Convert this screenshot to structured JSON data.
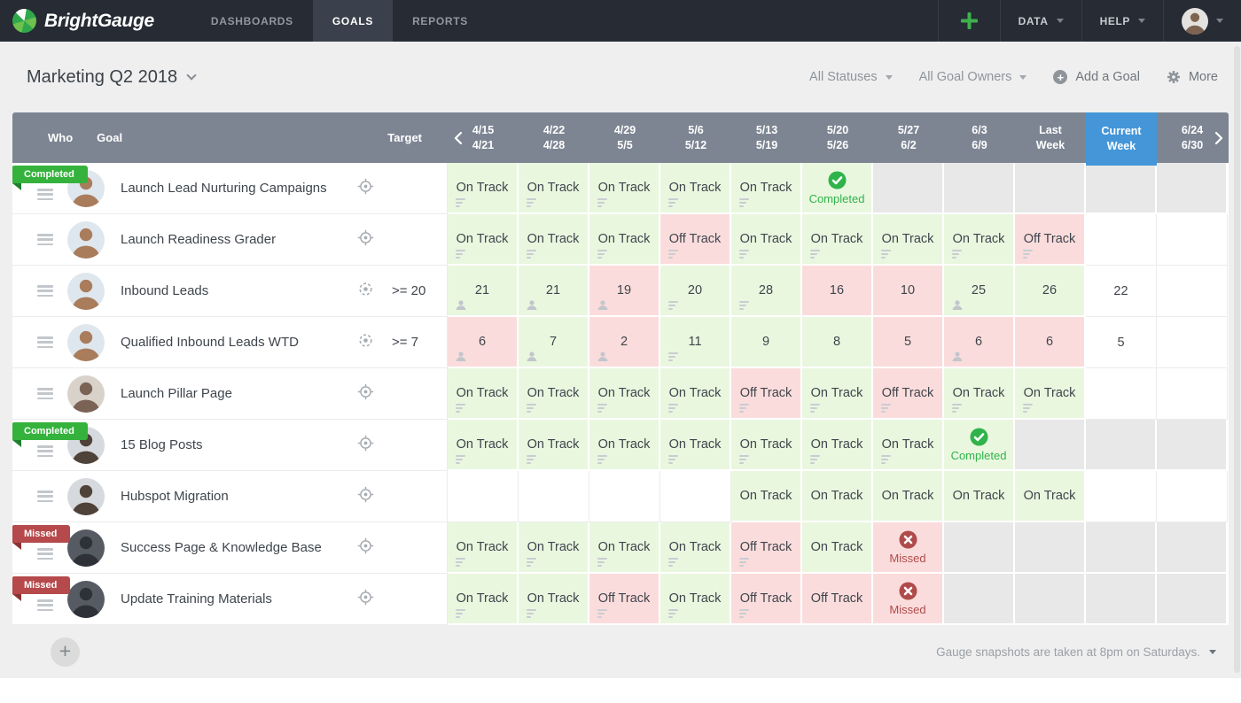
{
  "nav": {
    "brand": "BrightGauge",
    "tabs": [
      {
        "label": "DASHBOARDS",
        "active": false
      },
      {
        "label": "GOALS",
        "active": true
      },
      {
        "label": "REPORTS",
        "active": false
      }
    ],
    "menus": [
      {
        "label": "DATA"
      },
      {
        "label": "HELP"
      }
    ]
  },
  "toolbar": {
    "title": "Marketing Q2 2018",
    "status_filter": "All Statuses",
    "owner_filter": "All Goal Owners",
    "add_goal_label": "Add a Goal",
    "more_label": "More"
  },
  "table": {
    "who_header": "Who",
    "goal_header": "Goal",
    "target_header": "Target",
    "columns": [
      {
        "top": "4/15",
        "bottom": "4/21"
      },
      {
        "top": "4/22",
        "bottom": "4/28"
      },
      {
        "top": "4/29",
        "bottom": "5/5"
      },
      {
        "top": "5/6",
        "bottom": "5/12"
      },
      {
        "top": "5/13",
        "bottom": "5/19"
      },
      {
        "top": "5/20",
        "bottom": "5/26"
      },
      {
        "top": "5/27",
        "bottom": "6/2"
      },
      {
        "top": "6/3",
        "bottom": "6/9"
      },
      {
        "top": "Last",
        "bottom": "Week"
      },
      {
        "top": "Current",
        "bottom": "Week",
        "current": true
      },
      {
        "top": "6/24",
        "bottom": "6/30"
      }
    ],
    "rows": [
      {
        "goal": "Launch Lead Nurturing Campaigns",
        "badge": "Completed",
        "target": "",
        "target_type": "milestone",
        "avatar_tone": "t1",
        "cells": [
          {
            "text": "On Track",
            "state": "green",
            "icon": "note"
          },
          {
            "text": "On Track",
            "state": "green",
            "icon": "note"
          },
          {
            "text": "On Track",
            "state": "green",
            "icon": "note"
          },
          {
            "text": "On Track",
            "state": "green",
            "icon": "note"
          },
          {
            "text": "On Track",
            "state": "green",
            "icon": "note"
          },
          {
            "text": "Completed",
            "state": "completed"
          },
          {
            "state": "gray"
          },
          {
            "state": "gray"
          },
          {
            "state": "gray"
          },
          {
            "state": "gray"
          },
          {
            "state": "gray"
          }
        ]
      },
      {
        "goal": "Launch Readiness Grader",
        "badge": null,
        "target": "",
        "target_type": "milestone",
        "avatar_tone": "t1",
        "cells": [
          {
            "text": "On Track",
            "state": "green",
            "icon": "note"
          },
          {
            "text": "On Track",
            "state": "green",
            "icon": "note"
          },
          {
            "text": "On Track",
            "state": "green",
            "icon": "note"
          },
          {
            "text": "Off Track",
            "state": "red",
            "icon": "note"
          },
          {
            "text": "On Track",
            "state": "green",
            "icon": "note"
          },
          {
            "text": "On Track",
            "state": "green",
            "icon": "note"
          },
          {
            "text": "On Track",
            "state": "green",
            "icon": "note"
          },
          {
            "text": "On Track",
            "state": "green",
            "icon": "note"
          },
          {
            "text": "Off Track",
            "state": "red",
            "icon": "note"
          },
          {
            "state": "white"
          },
          {
            "state": "white"
          }
        ]
      },
      {
        "goal": "Inbound Leads",
        "badge": null,
        "target": ">= 20",
        "target_type": "number",
        "avatar_tone": "t1",
        "cells": [
          {
            "text": "21",
            "state": "green",
            "icon": "person"
          },
          {
            "text": "21",
            "state": "green",
            "icon": "person"
          },
          {
            "text": "19",
            "state": "red",
            "icon": "person"
          },
          {
            "text": "20",
            "state": "green",
            "icon": "note"
          },
          {
            "text": "28",
            "state": "green",
            "icon": "note"
          },
          {
            "text": "16",
            "state": "red"
          },
          {
            "text": "10",
            "state": "red"
          },
          {
            "text": "25",
            "state": "green",
            "icon": "person"
          },
          {
            "text": "26",
            "state": "green"
          },
          {
            "text": "22",
            "state": "white"
          },
          {
            "state": "white"
          }
        ]
      },
      {
        "goal": "Qualified Inbound Leads WTD",
        "badge": null,
        "target": ">= 7",
        "target_type": "number",
        "avatar_tone": "t1",
        "cells": [
          {
            "text": "6",
            "state": "red",
            "icon": "person"
          },
          {
            "text": "7",
            "state": "green",
            "icon": "person"
          },
          {
            "text": "2",
            "state": "red",
            "icon": "person"
          },
          {
            "text": "11",
            "state": "green",
            "icon": "note"
          },
          {
            "text": "9",
            "state": "green"
          },
          {
            "text": "8",
            "state": "green"
          },
          {
            "text": "5",
            "state": "red"
          },
          {
            "text": "6",
            "state": "red",
            "icon": "person"
          },
          {
            "text": "6",
            "state": "red"
          },
          {
            "text": "5",
            "state": "white"
          },
          {
            "state": "white"
          }
        ]
      },
      {
        "goal": "Launch Pillar Page",
        "badge": null,
        "target": "",
        "target_type": "milestone",
        "avatar_tone": "t2",
        "cells": [
          {
            "text": "On Track",
            "state": "green",
            "icon": "note"
          },
          {
            "text": "On Track",
            "state": "green",
            "icon": "note"
          },
          {
            "text": "On Track",
            "state": "green",
            "icon": "note"
          },
          {
            "text": "On Track",
            "state": "green",
            "icon": "note"
          },
          {
            "text": "Off Track",
            "state": "red",
            "icon": "note"
          },
          {
            "text": "On Track",
            "state": "green",
            "icon": "note"
          },
          {
            "text": "Off Track",
            "state": "red",
            "icon": "note"
          },
          {
            "text": "On Track",
            "state": "green",
            "icon": "note"
          },
          {
            "text": "On Track",
            "state": "green",
            "icon": "note"
          },
          {
            "state": "white"
          },
          {
            "state": "white"
          }
        ]
      },
      {
        "goal": "15 Blog Posts",
        "badge": "Completed",
        "target": "",
        "target_type": "milestone",
        "avatar_tone": "t3",
        "cells": [
          {
            "text": "On Track",
            "state": "green",
            "icon": "note"
          },
          {
            "text": "On Track",
            "state": "green",
            "icon": "note"
          },
          {
            "text": "On Track",
            "state": "green",
            "icon": "note"
          },
          {
            "text": "On Track",
            "state": "green",
            "icon": "note"
          },
          {
            "text": "On Track",
            "state": "green",
            "icon": "note"
          },
          {
            "text": "On Track",
            "state": "green",
            "icon": "note"
          },
          {
            "text": "On Track",
            "state": "green",
            "icon": "note"
          },
          {
            "text": "Completed",
            "state": "completed"
          },
          {
            "state": "gray"
          },
          {
            "state": "gray"
          },
          {
            "state": "gray"
          }
        ]
      },
      {
        "goal": "Hubspot Migration",
        "badge": null,
        "target": "",
        "target_type": "milestone",
        "avatar_tone": "t3",
        "cells": [
          {
            "state": "white"
          },
          {
            "state": "white"
          },
          {
            "state": "white"
          },
          {
            "state": "white"
          },
          {
            "text": "On Track",
            "state": "green"
          },
          {
            "text": "On Track",
            "state": "green"
          },
          {
            "text": "On Track",
            "state": "green"
          },
          {
            "text": "On Track",
            "state": "green"
          },
          {
            "text": "On Track",
            "state": "green"
          },
          {
            "state": "white"
          },
          {
            "state": "white"
          }
        ]
      },
      {
        "goal": "Success Page & Knowledge Base",
        "badge": "Missed",
        "target": "",
        "target_type": "milestone",
        "avatar_tone": "t4",
        "cells": [
          {
            "text": "On Track",
            "state": "green",
            "icon": "note"
          },
          {
            "text": "On Track",
            "state": "green",
            "icon": "note"
          },
          {
            "text": "On Track",
            "state": "green",
            "icon": "note"
          },
          {
            "text": "On Track",
            "state": "green",
            "icon": "note"
          },
          {
            "text": "Off Track",
            "state": "red",
            "icon": "note"
          },
          {
            "text": "On Track",
            "state": "green"
          },
          {
            "text": "Missed",
            "state": "missed"
          },
          {
            "state": "gray"
          },
          {
            "state": "gray"
          },
          {
            "state": "gray"
          },
          {
            "state": "gray"
          }
        ]
      },
      {
        "goal": "Update Training Materials",
        "badge": "Missed",
        "target": "",
        "target_type": "milestone",
        "avatar_tone": "t4",
        "cells": [
          {
            "text": "On Track",
            "state": "green",
            "icon": "note"
          },
          {
            "text": "On Track",
            "state": "green",
            "icon": "note"
          },
          {
            "text": "Off Track",
            "state": "red",
            "icon": "note"
          },
          {
            "text": "On Track",
            "state": "green",
            "icon": "note"
          },
          {
            "text": "Off Track",
            "state": "red",
            "icon": "note"
          },
          {
            "text": "Off Track",
            "state": "red"
          },
          {
            "text": "Missed",
            "state": "missed"
          },
          {
            "state": "gray"
          },
          {
            "state": "gray"
          },
          {
            "state": "gray"
          },
          {
            "state": "gray"
          }
        ]
      }
    ]
  },
  "footer": {
    "snapshot_note": "Gauge snapshots are taken at 8pm on Saturdays."
  },
  "colors": {
    "navBg": "#262b34",
    "navActive": "#3a414c",
    "brandGreen": "#3db14b",
    "headerBg": "#7d8593",
    "currentBlue": "#4596d8",
    "pageBg": "#efefef",
    "cellGreen": "#e9f7df",
    "cellRed": "#fbdcdc",
    "cellGray": "#e8e8e8",
    "statusGreen": "#2fb34a",
    "statusRed": "#b04b4b",
    "badgeGreen": "#35b23c",
    "badgeGreenFold": "#1f7e2b",
    "badgeRed": "#b5494b",
    "badgeRedFold": "#8a3336",
    "textDark": "#3f454c",
    "textGray": "#8f949b"
  },
  "avatar_tones": {
    "t1": {
      "bg": "#dfe7ee",
      "fg": "#a97c5c"
    },
    "t2": {
      "bg": "#d9d2cb",
      "fg": "#7a6355"
    },
    "t3": {
      "bg": "#d6d9dd",
      "fg": "#4e4239"
    },
    "t4": {
      "bg": "#565b63",
      "fg": "#2e3238"
    },
    "nav": {
      "bg": "#e4e2df",
      "fg": "#7d6352"
    }
  }
}
